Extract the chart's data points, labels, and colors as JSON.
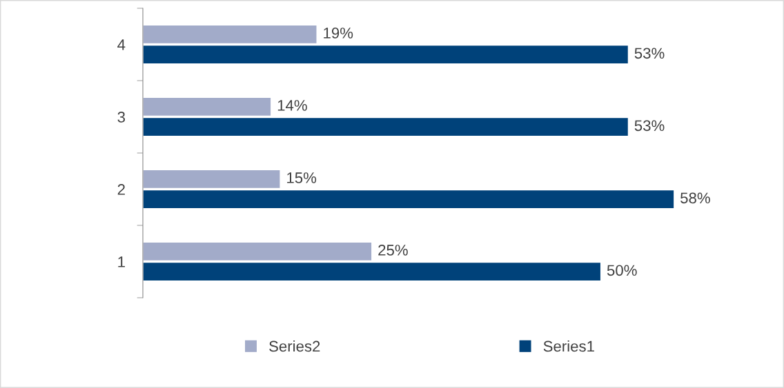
{
  "chart_data": {
    "type": "bar",
    "orientation": "horizontal",
    "categories": [
      "4",
      "3",
      "2",
      "1"
    ],
    "series": [
      {
        "name": "Series2",
        "color": "#a2abc9",
        "values": [
          19,
          14,
          15,
          25
        ],
        "value_labels": [
          "19%",
          "14%",
          "15%",
          "25%"
        ]
      },
      {
        "name": "Series1",
        "color": "#00427a",
        "values": [
          53,
          53,
          58,
          50
        ],
        "value_labels": [
          "53%",
          "53%",
          "58%",
          "50%"
        ]
      }
    ],
    "legend": "bottom",
    "grid": false
  }
}
